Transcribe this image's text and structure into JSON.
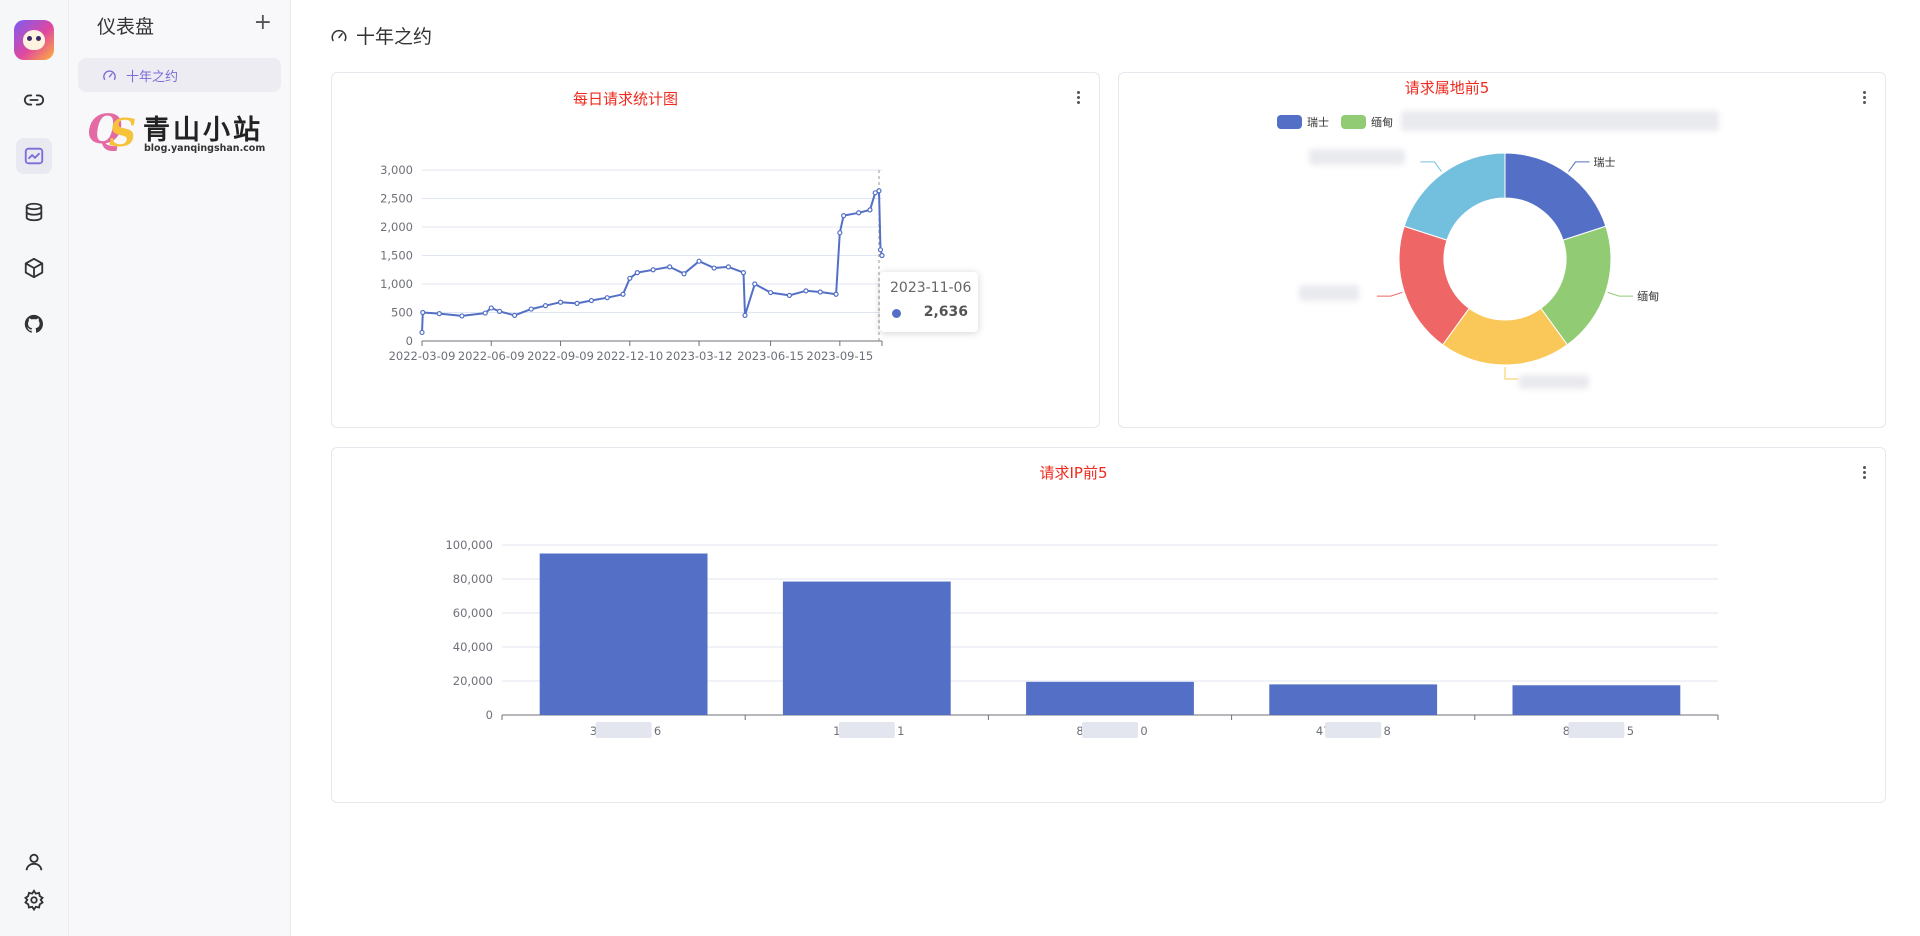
{
  "sidebar": {
    "title": "仪表盘",
    "add_label": "+",
    "items": [
      {
        "label": "十年之约",
        "icon": "gauge-icon"
      }
    ],
    "brand": {
      "text": "青山小站",
      "url": "blog.yanqingshan.com"
    }
  },
  "rail": {
    "icons": [
      "link-icon",
      "chart-icon",
      "database-icon",
      "cube-icon",
      "github-icon"
    ],
    "bottom_icons": [
      "user-icon",
      "gear-icon"
    ],
    "active": "chart-icon"
  },
  "page": {
    "title": "十年之约",
    "icon": "gauge-icon"
  },
  "colors": {
    "primary": "#5470c6",
    "title_red": "#ee2a1e",
    "active_text": "#7b6cd8"
  },
  "charts": [
    {
      "type": "line",
      "title": "每日请求统计图",
      "x_tick_labels": [
        "2022-03-09",
        "2022-06-09",
        "2022-09-09",
        "2022-12-10",
        "2023-03-12",
        "2023-06-15",
        "2023-09-15"
      ],
      "y_tick_labels": [
        "0",
        "500",
        "1,000",
        "1,500",
        "2,000",
        "2,500",
        "3,000"
      ],
      "ylim": [
        0,
        3000
      ],
      "xlim": [
        "2022-03-09",
        "2023-11-10"
      ],
      "series": [
        {
          "x": [
            "2022-03-09",
            "2022-03-10",
            "2022-04-01",
            "2022-05-01",
            "2022-06-01",
            "2022-06-09",
            "2022-06-20",
            "2022-07-10",
            "2022-08-01",
            "2022-08-20",
            "2022-09-09",
            "2022-10-01",
            "2022-10-20",
            "2022-11-10",
            "2022-12-01",
            "2022-12-10",
            "2022-12-20",
            "2023-01-10",
            "2023-02-01",
            "2023-02-20",
            "2023-03-12",
            "2023-04-01",
            "2023-04-20",
            "2023-05-10",
            "2023-05-12",
            "2023-05-25",
            "2023-06-15",
            "2023-07-10",
            "2023-08-01",
            "2023-08-20",
            "2023-09-10",
            "2023-09-15",
            "2023-09-20",
            "2023-10-10",
            "2023-10-25",
            "2023-11-01",
            "2023-11-06",
            "2023-11-08",
            "2023-11-10"
          ],
          "y": [
            150,
            500,
            480,
            440,
            490,
            580,
            520,
            450,
            560,
            620,
            680,
            660,
            710,
            760,
            820,
            1100,
            1200,
            1250,
            1300,
            1180,
            1400,
            1280,
            1300,
            1200,
            450,
            1000,
            850,
            800,
            880,
            860,
            820,
            1900,
            2200,
            2250,
            2300,
            2600,
            2636,
            1600,
            1500
          ]
        }
      ],
      "tooltip": {
        "date": "2023-11-06",
        "value": "2,636"
      }
    },
    {
      "type": "pie",
      "title": "请求属地前5",
      "legend_position": "top",
      "slices": [
        {
          "name": "瑞士",
          "value": 20,
          "color": "#5470c6"
        },
        {
          "name": "缅甸",
          "value": 20,
          "color": "#91cc75"
        },
        {
          "name": "",
          "value": 20,
          "color": "#fac858"
        },
        {
          "name": "",
          "value": 20,
          "color": "#ee6666"
        },
        {
          "name": "",
          "value": 20,
          "color": "#73c0de"
        }
      ]
    },
    {
      "type": "bar",
      "title": "请求IP前5",
      "y_tick_labels": [
        "0",
        "20,000",
        "40,000",
        "60,000",
        "80,000",
        "100,000"
      ],
      "ylim": [
        0,
        100000
      ],
      "categories": [
        "3.6",
        "1.1",
        "8.0",
        "47.8",
        "8.5"
      ],
      "values": [
        95000,
        78500,
        19500,
        18000,
        17500
      ]
    }
  ]
}
